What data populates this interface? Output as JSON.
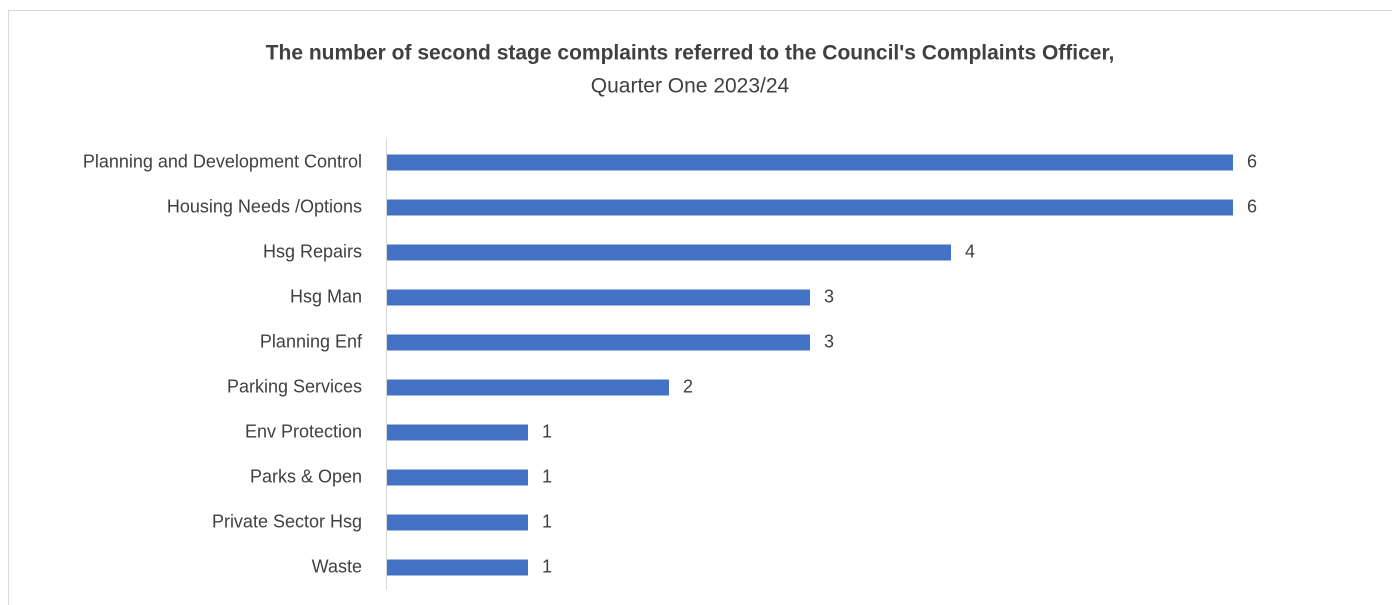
{
  "chart_data": {
    "type": "bar",
    "orientation": "horizontal",
    "title": "The number of second stage complaints referred to the Council's Complaints Officer,",
    "subtitle": "Quarter One 2023/24",
    "categories": [
      "Planning and Development Control",
      "Housing Needs /Options",
      "Hsg Repairs",
      "Hsg Man",
      "Planning Enf",
      "Parking Services",
      "Env Protection",
      "Parks & Open",
      "Private Sector Hsg",
      "Waste"
    ],
    "values": [
      6,
      6,
      4,
      3,
      3,
      2,
      1,
      1,
      1,
      1
    ],
    "color": "#4472c4",
    "xlim": [
      0,
      7
    ]
  }
}
